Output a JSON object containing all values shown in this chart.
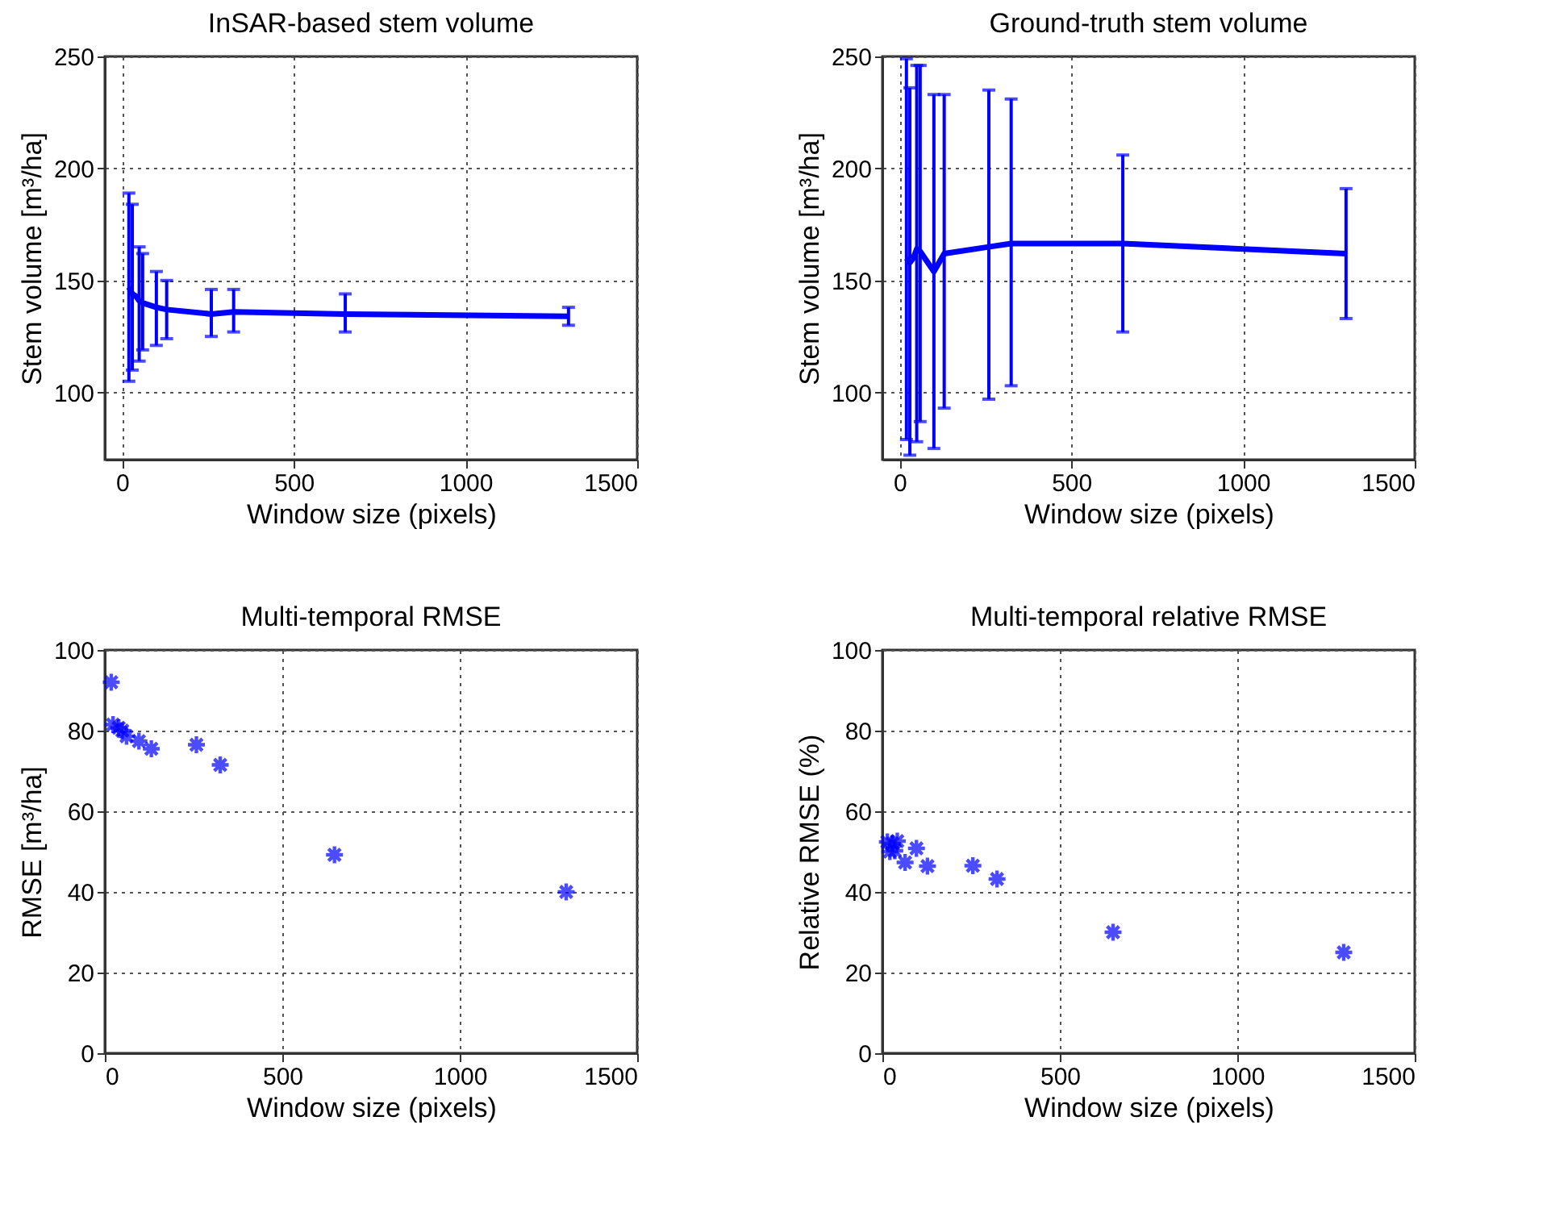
{
  "chart_data": [
    {
      "type": "line",
      "title": "InSAR-based stem volume",
      "xlabel": "Window size (pixels)",
      "ylabel": "Stem volume  [m³/ha]",
      "xlim": [
        -50,
        1500
      ],
      "xticks": [
        0,
        500,
        1000,
        1500
      ],
      "ylim": [
        70,
        250
      ],
      "yticks": [
        100,
        150,
        200,
        250
      ],
      "grid": true,
      "marker": "none",
      "line_style": "solid",
      "series": [
        {
          "color": "#0000ff",
          "x": [
            20,
            30,
            40,
            50,
            60,
            100,
            130,
            260,
            325,
            650,
            1300
          ],
          "values": [
            147,
            144,
            143,
            141,
            140,
            138,
            137,
            135,
            136,
            135,
            134
          ],
          "errors": [
            [
              105,
              189
            ],
            [
              110,
              184
            ],
            null,
            [
              114,
              165
            ],
            [
              119,
              162
            ],
            [
              121,
              154
            ],
            [
              124,
              150
            ],
            [
              125,
              146
            ],
            [
              127,
              146
            ],
            [
              127,
              144
            ],
            [
              130,
              138
            ]
          ]
        }
      ]
    },
    {
      "type": "line",
      "title": "Ground-truth stem volume",
      "xlabel": "Window size (pixels)",
      "ylabel": "Stem volume  [m³/ha]",
      "xlim": [
        -50,
        1500
      ],
      "xticks": [
        0,
        500,
        1000,
        1500
      ],
      "ylim": [
        70,
        250
      ],
      "yticks": [
        100,
        150,
        200,
        250
      ],
      "grid": true,
      "marker": "none",
      "line_style": "solid",
      "series": [
        {
          "color": "#0000ff",
          "x": [
            20,
            30,
            40,
            50,
            60,
            100,
            130,
            260,
            325,
            650,
            1300
          ],
          "values": [
            160,
            158,
            160,
            164,
            163,
            154,
            162,
            165,
            166.5,
            166.5,
            162
          ],
          "errors": [
            [
              79,
              249
            ],
            [
              72,
              236
            ],
            null,
            [
              78,
              246
            ],
            [
              87,
              246
            ],
            [
              75,
              233
            ],
            [
              93,
              233
            ],
            [
              97,
              235
            ],
            [
              103,
              231
            ],
            [
              127,
              206
            ],
            [
              133,
              191
            ]
          ]
        }
      ]
    },
    {
      "type": "scatter",
      "title": "Multi-temporal RMSE",
      "xlabel": "Window size (pixels)",
      "ylabel": "RMSE   [m³/ha]",
      "xlim": [
        0,
        1500
      ],
      "xticks": [
        0,
        500,
        1000,
        1500
      ],
      "ylim": [
        0,
        100
      ],
      "yticks": [
        0,
        20,
        40,
        60,
        80,
        100
      ],
      "grid": true,
      "marker": "cross",
      "series": [
        {
          "color": "#0000ff",
          "x": [
            18,
            23,
            39,
            49,
            61,
            96,
            131,
            258,
            325,
            647,
            1300
          ],
          "values": [
            92,
            81.5,
            80.7,
            80,
            78.6,
            77.4,
            75.5,
            76.5,
            71.5,
            49.2,
            40
          ]
        }
      ]
    },
    {
      "type": "scatter",
      "title": "Multi-temporal relative RMSE",
      "xlabel": "Window size (pixels)",
      "ylabel": "Relative RMSE  (%)",
      "xlim": [
        0,
        1500
      ],
      "xticks": [
        0,
        500,
        1000,
        1500
      ],
      "ylim": [
        0,
        100
      ],
      "yticks": [
        0,
        20,
        40,
        60,
        80,
        100
      ],
      "grid": true,
      "marker": "cross",
      "series": [
        {
          "color": "#0000ff",
          "x": [
            14,
            21,
            28,
            35,
            42,
            64,
            96,
            127,
            255,
            323,
            650,
            1300
          ],
          "values": [
            52.4,
            50,
            52,
            50.2,
            52.6,
            47.3,
            50.8,
            46.4,
            46.5,
            43.2,
            30,
            25
          ]
        }
      ]
    }
  ]
}
